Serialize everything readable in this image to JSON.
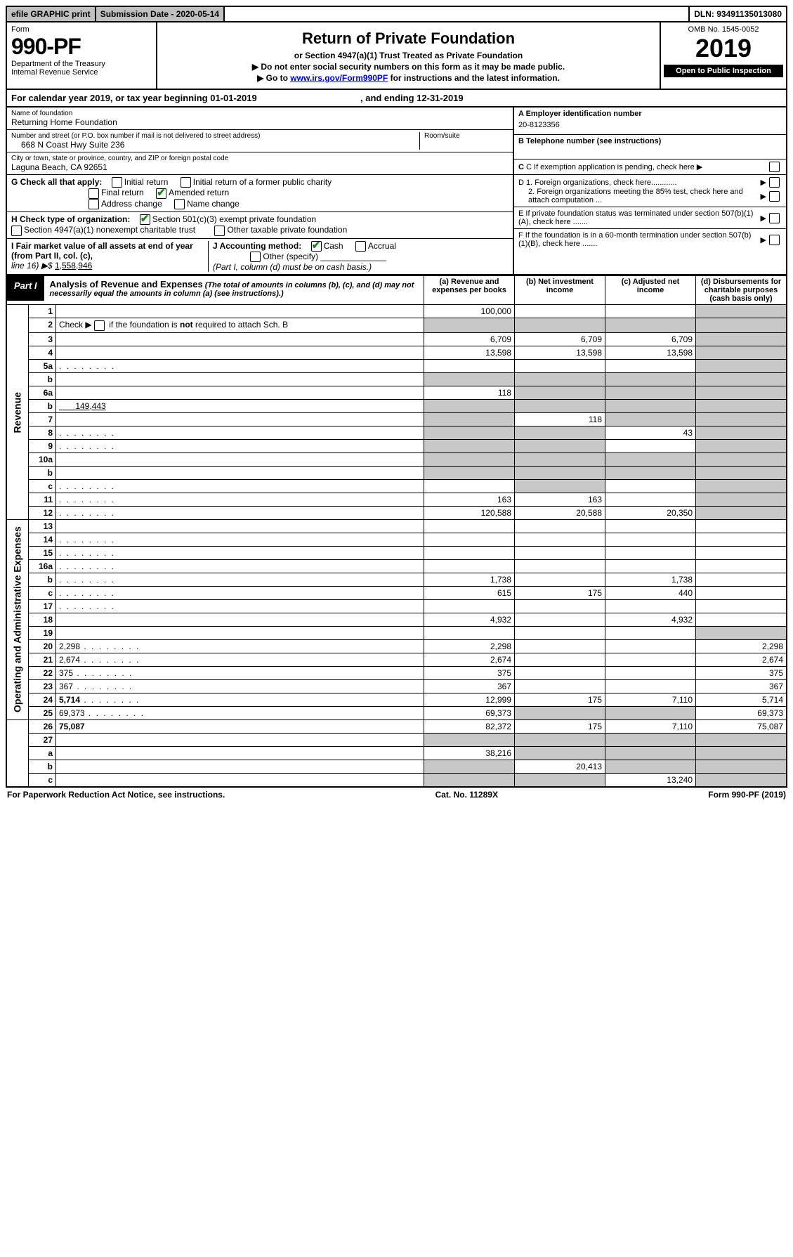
{
  "top": {
    "efile": "efile GRAPHIC print",
    "submission": "Submission Date - 2020-05-14",
    "dln": "DLN: 93491135013080"
  },
  "header": {
    "form_word": "Form",
    "form_num": "990-PF",
    "dept": "Department of the Treasury",
    "irs": "Internal Revenue Service",
    "title": "Return of Private Foundation",
    "subtitle": "or Section 4947(a)(1) Trust Treated as Private Foundation",
    "note1": "▶ Do not enter social security numbers on this form as it may be made public.",
    "note2_pre": "▶ Go to ",
    "note2_link": "www.irs.gov/Form990PF",
    "note2_post": " for instructions and the latest information.",
    "omb": "OMB No. 1545-0052",
    "year": "2019",
    "open": "Open to Public Inspection"
  },
  "cal": {
    "text_a": "For calendar year 2019, or tax year beginning 01-01-2019",
    "text_b": ", and ending 12-31-2019"
  },
  "ident": {
    "name_lbl": "Name of foundation",
    "name": "Returning Home Foundation",
    "addr_lbl": "Number and street (or P.O. box number if mail is not delivered to street address)",
    "addr": "668 N Coast Hwy Suite 236",
    "room_lbl": "Room/suite",
    "city_lbl": "City or town, state or province, country, and ZIP or foreign postal code",
    "city": "Laguna Beach, CA  92651",
    "A_lbl": "A Employer identification number",
    "A_val": "20-8123356",
    "B_lbl": "B Telephone number (see instructions)",
    "C_lbl": "C If exemption application is pending, check here",
    "D1": "D 1. Foreign organizations, check here............",
    "D2": "2. Foreign organizations meeting the 85% test, check here and attach computation ...",
    "E": "E  If private foundation status was terminated under section 507(b)(1)(A), check here .......",
    "F": "F  If the foundation is in a 60-month termination under section 507(b)(1)(B), check here ......."
  },
  "G": {
    "lbl": "G Check all that apply:",
    "initial": "Initial return",
    "initial_former": "Initial return of a former public charity",
    "final": "Final return",
    "amended": "Amended return",
    "addr_change": "Address change",
    "name_change": "Name change"
  },
  "H": {
    "lbl": "H Check type of organization:",
    "c3": "Section 501(c)(3) exempt private foundation",
    "a1": "Section 4947(a)(1) nonexempt charitable trust",
    "other": "Other taxable private foundation"
  },
  "I": {
    "lbl": "I Fair market value of all assets at end of year (from Part II, col. (c),",
    "line": "line 16) ▶$ ",
    "val": "1,558,946"
  },
  "J": {
    "lbl": "J Accounting method:",
    "cash": "Cash",
    "accrual": "Accrual",
    "other": "Other (specify)",
    "note": "(Part I, column (d) must be on cash basis.)"
  },
  "part1": {
    "label": "Part I",
    "title": "Analysis of Revenue and Expenses",
    "title_note": " (The total of amounts in columns (b), (c), and (d) may not necessarily equal the amounts in column (a) (see instructions).)",
    "col_a": "(a)   Revenue and expenses per books",
    "col_b": "(b)  Net investment income",
    "col_c": "(c)  Adjusted net income",
    "col_d": "(d)  Disbursements for charitable purposes (cash basis only)"
  },
  "sections": {
    "revenue": "Revenue",
    "expenses": "Operating and Administrative Expenses"
  },
  "rows": [
    {
      "n": "1",
      "d": "",
      "a": "100,000",
      "b": "",
      "c": "",
      "dg": true
    },
    {
      "n": "2",
      "d": "",
      "a": "",
      "b": "",
      "c": "",
      "ag": true,
      "bg": true,
      "cg": true,
      "dg": true,
      "raw": true
    },
    {
      "n": "3",
      "d": "",
      "a": "6,709",
      "b": "6,709",
      "c": "6,709",
      "dg": true
    },
    {
      "n": "4",
      "d": "",
      "a": "13,598",
      "b": "13,598",
      "c": "13,598",
      "dg": true
    },
    {
      "n": "5a",
      "d": "",
      "a": "",
      "b": "",
      "c": "",
      "dg": true,
      "dots": true
    },
    {
      "n": "b",
      "d": "",
      "a": "",
      "b": "",
      "c": "",
      "ag": true,
      "bg": true,
      "cg": true,
      "dg": true
    },
    {
      "n": "6a",
      "d": "",
      "a": "118",
      "b": "",
      "c": "",
      "bg": true,
      "cg": true,
      "dg": true
    },
    {
      "n": "b",
      "d": "",
      "suffix": "149,443",
      "a": "",
      "b": "",
      "c": "",
      "ag": true,
      "bg": true,
      "cg": true,
      "dg": true
    },
    {
      "n": "7",
      "d": "",
      "a": "",
      "b": "118",
      "c": "",
      "ag": true,
      "cg": true,
      "dg": true
    },
    {
      "n": "8",
      "d": "",
      "a": "",
      "b": "",
      "c": "43",
      "ag": true,
      "bg": true,
      "dg": true,
      "dots": true
    },
    {
      "n": "9",
      "d": "",
      "a": "",
      "b": "",
      "c": "",
      "ag": true,
      "bg": true,
      "dg": true,
      "dots": true
    },
    {
      "n": "10a",
      "d": "",
      "a": "",
      "b": "",
      "c": "",
      "ag": true,
      "bg": true,
      "cg": true,
      "dg": true
    },
    {
      "n": "b",
      "d": "",
      "a": "",
      "b": "",
      "c": "",
      "ag": true,
      "bg": true,
      "cg": true,
      "dg": true
    },
    {
      "n": "c",
      "d": "",
      "a": "",
      "b": "",
      "c": "",
      "bg": true,
      "dg": true,
      "dots": true
    },
    {
      "n": "11",
      "d": "",
      "a": "163",
      "b": "163",
      "c": "",
      "dg": true,
      "dots": true
    },
    {
      "n": "12",
      "d": "",
      "a": "120,588",
      "b": "20,588",
      "c": "20,350",
      "dg": true,
      "bold": true,
      "dots": true
    },
    {
      "n": "13",
      "d": "",
      "a": "",
      "b": "",
      "c": ""
    },
    {
      "n": "14",
      "d": "",
      "a": "",
      "b": "",
      "c": "",
      "dots": true
    },
    {
      "n": "15",
      "d": "",
      "a": "",
      "b": "",
      "c": "",
      "dots": true
    },
    {
      "n": "16a",
      "d": "",
      "a": "",
      "b": "",
      "c": "",
      "dots": true
    },
    {
      "n": "b",
      "d": "",
      "a": "1,738",
      "b": "",
      "c": "1,738",
      "dots": true
    },
    {
      "n": "c",
      "d": "",
      "a": "615",
      "b": "175",
      "c": "440",
      "dots": true
    },
    {
      "n": "17",
      "d": "",
      "a": "",
      "b": "",
      "c": "",
      "dots": true
    },
    {
      "n": "18",
      "d": "",
      "a": "4,932",
      "b": "",
      "c": "4,932"
    },
    {
      "n": "19",
      "d": "",
      "a": "",
      "b": "",
      "c": "",
      "dg": true
    },
    {
      "n": "20",
      "d": "2,298",
      "a": "2,298",
      "b": "",
      "c": "",
      "dots": true
    },
    {
      "n": "21",
      "d": "2,674",
      "a": "2,674",
      "b": "",
      "c": "",
      "dots": true
    },
    {
      "n": "22",
      "d": "375",
      "a": "375",
      "b": "",
      "c": "",
      "dots": true
    },
    {
      "n": "23",
      "d": "367",
      "a": "367",
      "b": "",
      "c": "",
      "dots": true
    },
    {
      "n": "24",
      "d": "5,714",
      "a": "12,999",
      "b": "175",
      "c": "7,110",
      "bold": true,
      "dots": true
    },
    {
      "n": "25",
      "d": "69,373",
      "a": "69,373",
      "b": "",
      "c": "",
      "bg": true,
      "cg": true,
      "dots": true
    },
    {
      "n": "26",
      "d": "75,087",
      "a": "82,372",
      "b": "175",
      "c": "7,110",
      "bold": true
    },
    {
      "n": "27",
      "d": "",
      "a": "",
      "b": "",
      "c": "",
      "ag": true,
      "bg": true,
      "cg": true,
      "dg": true
    },
    {
      "n": "a",
      "d": "",
      "a": "38,216",
      "b": "",
      "c": "",
      "bg": true,
      "cg": true,
      "dg": true,
      "bold": true
    },
    {
      "n": "b",
      "d": "",
      "a": "",
      "b": "20,413",
      "c": "",
      "ag": true,
      "cg": true,
      "dg": true,
      "bold": true
    },
    {
      "n": "c",
      "d": "",
      "a": "",
      "b": "",
      "c": "13,240",
      "ag": true,
      "bg": true,
      "dg": true,
      "bold": true
    }
  ],
  "footer": {
    "left": "For Paperwork Reduction Act Notice, see instructions.",
    "mid": "Cat. No. 11289X",
    "right": "Form 990-PF (2019)"
  },
  "layout": {
    "rev_start": 0,
    "rev_end": 16,
    "exp_start": 16,
    "exp_end": 31
  }
}
